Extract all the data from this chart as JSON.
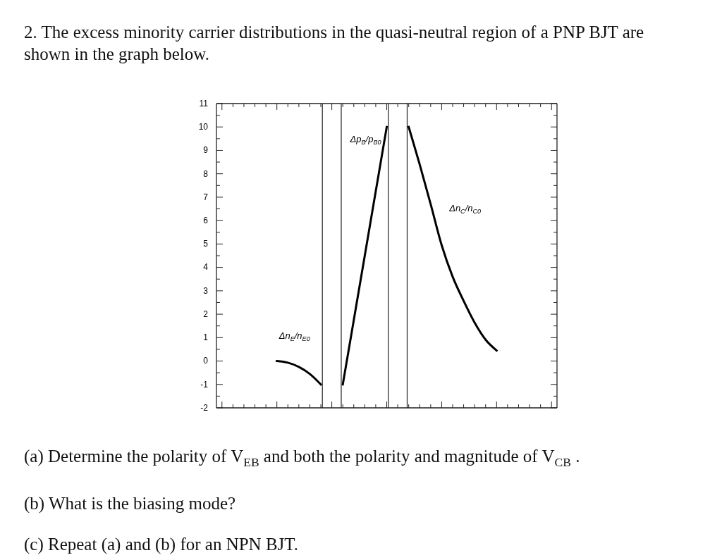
{
  "chart_data": {
    "type": "line",
    "title": "2. The excess minority carrier distributions in the quasi-neutral region of a PNP BJT are shown in the graph below.",
    "categories": [
      null,
      null,
      null,
      null,
      null,
      null,
      null,
      null,
      null,
      null,
      null,
      null,
      null,
      null,
      null,
      null,
      null,
      null,
      null,
      null,
      null,
      null,
      null,
      null,
      null,
      null,
      null,
      null,
      null,
      null,
      null
    ],
    "ylim": [
      -2,
      11
    ],
    "yticks": [
      -2,
      {
        "value": -1.5,
        "label": null
      },
      -1,
      {
        "value": -0.5,
        "label": null
      },
      0,
      {
        "value": 0.5,
        "label": null
      },
      1,
      {
        "value": 1.5,
        "label": null
      },
      2,
      {
        "value": 2.5,
        "label": null
      },
      3,
      {
        "value": 3.5,
        "label": null
      },
      4,
      {
        "value": 4.5,
        "label": null
      },
      5,
      {
        "value": 5.5,
        "label": null
      },
      6,
      {
        "value": 6.5,
        "label": null
      },
      7,
      {
        "value": 7.5,
        "label": null
      },
      8,
      {
        "value": 8.5,
        "label": null
      },
      9,
      {
        "value": 9.5,
        "label": null
      },
      10,
      {
        "value": 10.5,
        "label": null
      },
      11
    ],
    "tick_labels": "y",
    "grid": false,
    "marker": "none",
    "line_style": "solid",
    "series": [
      {
        "name": "Δn$_{E}$/n$_{E0}$",
        "color": "#000000",
        "values": [
          null,
          null,
          null,
          null,
          null,
          0,
          -0.07,
          -0.25,
          -0.55,
          -1,
          null,
          null,
          null,
          null,
          null,
          null,
          null,
          null,
          null,
          null,
          null,
          null,
          null,
          null,
          null,
          null,
          null,
          null,
          null,
          null,
          null
        ]
      },
      {
        "name": "Δp$_{B}$/p$_{B0}$",
        "color": "#000000",
        "values": [
          null,
          null,
          null,
          null,
          null,
          null,
          null,
          null,
          null,
          null,
          null,
          -1,
          1.75,
          4.5,
          7.25,
          10,
          null,
          null,
          null,
          null,
          null,
          null,
          null,
          null,
          null,
          null,
          null,
          null,
          null,
          null,
          null
        ]
      },
      {
        "name": "Δn$_{C}$/n$_{C0}$",
        "color": "#000000",
        "values": [
          null,
          null,
          null,
          null,
          null,
          null,
          null,
          null,
          null,
          null,
          null,
          null,
          null,
          null,
          null,
          null,
          null,
          10,
          8.4,
          6.7,
          4.95,
          3.6,
          2.57,
          1.64,
          0.91,
          0.45,
          null,
          null,
          null,
          null,
          null
        ]
      }
    ],
    "annotations": [
      "(a) Determine the polarity of V$_{EB}$ and both the polarity and magnitude of V$_{CB}$ .",
      "(b) What is the biasing mode?",
      "(c) Repeat (a) and (b) for an NPN BJT."
    ]
  }
}
